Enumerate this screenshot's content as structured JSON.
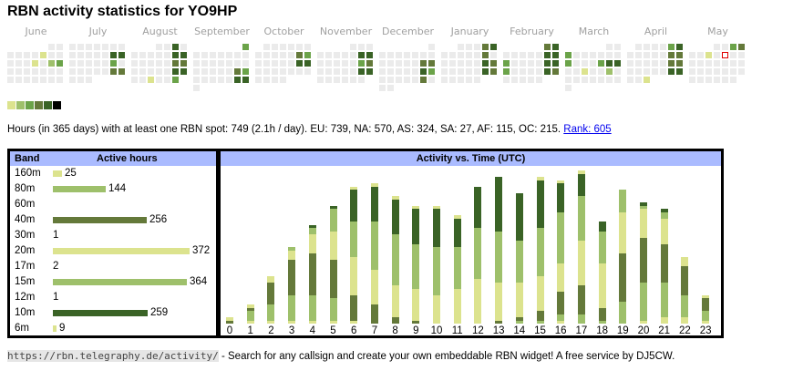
{
  "title": "RBN activity statistics for YO9HP",
  "colors": {
    "levels": [
      "#ebebeb",
      "#dce38e",
      "#9ec06b",
      "#6ba349",
      "#64793a",
      "#3a6326",
      "#000000"
    ],
    "today_border": "#e00000",
    "header_bg": "#aabbff",
    "link": "#0000ee"
  },
  "calendar": {
    "months": [
      {
        "name": "June",
        "start_col": 5,
        "days": 30,
        "active": [
          [
            1,
            4,
            1
          ],
          [
            2,
            3,
            1
          ],
          [
            2,
            5,
            2
          ],
          [
            2,
            6,
            3
          ]
        ]
      },
      {
        "name": "July",
        "start_col": 0,
        "days": 31,
        "active": [
          [
            1,
            5,
            5
          ],
          [
            1,
            6,
            5
          ],
          [
            2,
            5,
            3
          ],
          [
            3,
            5,
            4
          ],
          [
            3,
            6,
            4
          ]
        ]
      },
      {
        "name": "August",
        "start_col": 3,
        "days": 31,
        "active": [
          [
            0,
            5,
            5
          ],
          [
            1,
            5,
            5
          ],
          [
            1,
            6,
            5
          ],
          [
            2,
            5,
            4
          ],
          [
            2,
            6,
            4
          ],
          [
            3,
            5,
            5
          ],
          [
            3,
            6,
            5
          ],
          [
            4,
            2,
            1
          ],
          [
            4,
            5,
            3
          ]
        ]
      },
      {
        "name": "September",
        "start_col": 6,
        "days": 30,
        "active": [
          [
            0,
            6,
            3
          ],
          [
            3,
            5,
            4
          ],
          [
            3,
            6,
            3
          ],
          [
            4,
            5,
            5
          ],
          [
            4,
            6,
            5
          ]
        ]
      },
      {
        "name": "October",
        "start_col": 1,
        "days": 31,
        "active": [
          [
            1,
            5,
            4
          ],
          [
            1,
            6,
            3
          ],
          [
            2,
            5,
            5
          ],
          [
            2,
            6,
            5
          ]
        ]
      },
      {
        "name": "November",
        "start_col": 4,
        "days": 30,
        "active": [
          [
            1,
            5,
            5
          ],
          [
            1,
            6,
            5
          ],
          [
            2,
            5,
            3
          ],
          [
            2,
            6,
            4
          ],
          [
            3,
            5,
            5
          ],
          [
            3,
            6,
            5
          ]
        ]
      },
      {
        "name": "December",
        "start_col": 6,
        "days": 31,
        "active": [
          [
            2,
            5,
            4
          ],
          [
            2,
            6,
            4
          ],
          [
            3,
            5,
            5
          ],
          [
            3,
            6,
            3
          ],
          [
            4,
            5,
            4
          ]
        ]
      },
      {
        "name": "January",
        "start_col": 2,
        "days": 31,
        "active": [
          [
            0,
            5,
            4
          ],
          [
            0,
            6,
            5
          ],
          [
            1,
            5,
            4
          ],
          [
            2,
            5,
            5
          ],
          [
            2,
            6,
            4
          ],
          [
            3,
            5,
            5
          ],
          [
            3,
            6,
            4
          ]
        ]
      },
      {
        "name": "February",
        "start_col": 5,
        "days": 28,
        "active": [
          [
            0,
            5,
            4
          ],
          [
            0,
            6,
            5
          ],
          [
            1,
            5,
            5
          ],
          [
            1,
            6,
            5
          ],
          [
            2,
            0,
            3
          ],
          [
            2,
            5,
            5
          ],
          [
            2,
            6,
            5
          ],
          [
            3,
            0,
            3
          ],
          [
            3,
            5,
            5
          ],
          [
            3,
            6,
            4
          ]
        ]
      },
      {
        "name": "March",
        "start_col": 5,
        "days": 31,
        "active": [
          [
            1,
            0,
            3
          ],
          [
            2,
            0,
            3
          ],
          [
            2,
            4,
            3
          ],
          [
            2,
            5,
            5
          ],
          [
            2,
            6,
            5
          ],
          [
            3,
            2,
            1
          ],
          [
            3,
            5,
            2
          ]
        ]
      },
      {
        "name": "April",
        "start_col": 1,
        "days": 30,
        "active": [
          [
            0,
            5,
            3
          ],
          [
            0,
            6,
            5
          ],
          [
            1,
            5,
            4
          ],
          [
            1,
            6,
            4
          ],
          [
            2,
            5,
            4
          ],
          [
            2,
            6,
            4
          ],
          [
            3,
            5,
            5
          ],
          [
            3,
            6,
            5
          ],
          [
            4,
            2,
            1
          ]
        ]
      },
      {
        "name": "May",
        "start_col": 3,
        "days": 31,
        "active": [
          [
            0,
            5,
            3
          ],
          [
            0,
            6,
            4
          ],
          [
            1,
            2,
            1
          ]
        ],
        "today": [
          1,
          4
        ]
      }
    ]
  },
  "legend_levels": [
    1,
    2,
    3,
    4,
    5,
    6
  ],
  "stats": {
    "text": "Hours (in 365 days) with at least one RBN spot: 749 (2.1h / day). EU: 739, NA: 570, AS: 324, SA: 27, AF: 115, OC: 215. ",
    "rank_link": "Rank: 605"
  },
  "bands": {
    "header_band": "Band",
    "header_hours": "Active hours",
    "max": 372,
    "rows": [
      {
        "band": "160m",
        "hours": 25,
        "level": 1
      },
      {
        "band": "80m",
        "hours": 144,
        "level": 2
      },
      {
        "band": "60m",
        "hours": null,
        "level": 0
      },
      {
        "band": "40m",
        "hours": 256,
        "level": 4
      },
      {
        "band": "30m",
        "hours": 1,
        "level": 0
      },
      {
        "band": "20m",
        "hours": 372,
        "level": 1
      },
      {
        "band": "17m",
        "hours": 2,
        "level": 0
      },
      {
        "band": "15m",
        "hours": 364,
        "level": 2
      },
      {
        "band": "12m",
        "hours": 1,
        "level": 0
      },
      {
        "band": "10m",
        "hours": 259,
        "level": 5
      },
      {
        "band": "6m",
        "hours": 9,
        "level": 1
      }
    ]
  },
  "chart_data": {
    "type": "bar",
    "stacked": true,
    "title": "Activity vs. Time (UTC)",
    "xlabel": "",
    "ylabel": "",
    "categories": [
      "0",
      "1",
      "2",
      "3",
      "4",
      "5",
      "6",
      "7",
      "8",
      "9",
      "10",
      "11",
      "12",
      "13",
      "14",
      "15",
      "16",
      "17",
      "18",
      "19",
      "20",
      "21",
      "22",
      "23"
    ],
    "ylim": [
      0,
      48
    ],
    "series": [
      {
        "name": "160m",
        "level": 1,
        "values": [
          0,
          1,
          1,
          1,
          1,
          1,
          1,
          0,
          0,
          0,
          0,
          0,
          0,
          0,
          0,
          0,
          1,
          0,
          0,
          0,
          1,
          2,
          2,
          1
        ]
      },
      {
        "name": "80m",
        "level": 2,
        "values": [
          0,
          3,
          5,
          8,
          8,
          7,
          0,
          0,
          0,
          0,
          0,
          0,
          0,
          0,
          1,
          1,
          2,
          3,
          1,
          7,
          12,
          11,
          7,
          3
        ]
      },
      {
        "name": "40m",
        "level": 4,
        "values": [
          1,
          1,
          7,
          11,
          13,
          12,
          8,
          6,
          2,
          1,
          0,
          0,
          0,
          1,
          1,
          3,
          7,
          9,
          4,
          15,
          14,
          12,
          9,
          4
        ]
      },
      {
        "name": "20m",
        "level": 1,
        "values": [
          1,
          1,
          2,
          3,
          6,
          9,
          12,
          11,
          10,
          10,
          9,
          11,
          14,
          12,
          11,
          11,
          9,
          14,
          14,
          13,
          9,
          8,
          3,
          1
        ]
      },
      {
        "name": "15m",
        "level": 2,
        "values": [
          0,
          0,
          0,
          1,
          2,
          7,
          11,
          15,
          16,
          14,
          15,
          13,
          16,
          16,
          13,
          15,
          16,
          14,
          10,
          7,
          1,
          2,
          0,
          0
        ]
      },
      {
        "name": "10m",
        "level": 5,
        "values": [
          0,
          0,
          0,
          0,
          1,
          1,
          10,
          11,
          11,
          11,
          12,
          9,
          13,
          17,
          15,
          15,
          9,
          7,
          3,
          0,
          1,
          1,
          0,
          0
        ]
      },
      {
        "name": "6m",
        "level": 1,
        "values": [
          0,
          0,
          0,
          0,
          0,
          0,
          1,
          1,
          1,
          1,
          1,
          1,
          0,
          0,
          0,
          1,
          1,
          1,
          0,
          0,
          0,
          0,
          0,
          0
        ]
      }
    ]
  },
  "footer": {
    "url": "https://rbn.telegraphy.de/activity/",
    "text": " - Search for any callsign and create your own embeddable RBN widget! A free service by DJ5CW."
  }
}
